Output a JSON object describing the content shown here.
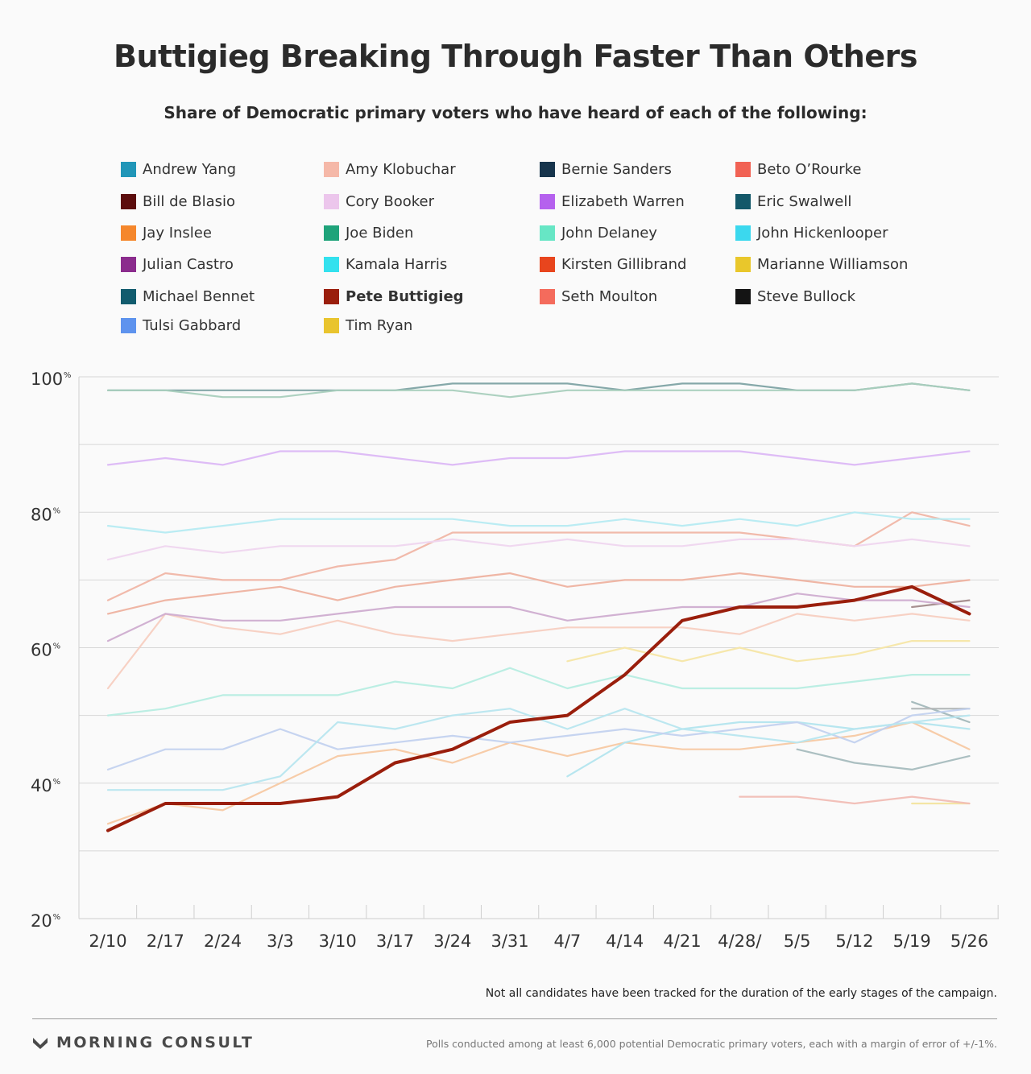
{
  "title": "Buttigieg Breaking Through Faster Than Others",
  "subtitle": "Share of Democratic primary voters who have heard of each of the following:",
  "footnote": "Not all candidates have been tracked for the duration of the early stages of the campaign.",
  "brand": "MORNING CONSULT",
  "source": "Polls conducted among at least 6,000 potential Democratic primary voters, each with a margin of error of +/-1%.",
  "chart_data": {
    "type": "line",
    "x": [
      "2/10",
      "2/17",
      "2/24",
      "3/3",
      "3/10",
      "3/17",
      "3/24",
      "3/31",
      "4/7",
      "4/14",
      "4/21",
      "4/28/",
      "5/5",
      "5/12",
      "5/19",
      "5/26"
    ],
    "ylim": [
      20,
      100
    ],
    "yticks": [
      20,
      40,
      60,
      80,
      100
    ],
    "ytick_labels": [
      "20",
      "40",
      "60",
      "80",
      "100"
    ],
    "ytick_suffix": "%",
    "grid": true,
    "legend_position": "top",
    "highlight": "Pete Buttigieg",
    "series": [
      {
        "name": "Andrew Yang",
        "color": "#2196b8",
        "line_color": "#a9d4df",
        "values": [
          null,
          null,
          null,
          null,
          null,
          null,
          null,
          null,
          null,
          null,
          null,
          null,
          null,
          null,
          51,
          51
        ]
      },
      {
        "name": "Amy Klobuchar",
        "color": "#f5b8a8",
        "line_color": "#f7cfc1",
        "values": [
          54,
          65,
          63,
          62,
          64,
          62,
          61,
          62,
          63,
          63,
          63,
          62,
          65,
          64,
          65,
          64
        ]
      },
      {
        "name": "Bernie Sanders",
        "color": "#16344c",
        "line_color": "#7ea3a4",
        "values": [
          98,
          98,
          98,
          98,
          98,
          98,
          99,
          99,
          99,
          98,
          99,
          99,
          98,
          98,
          99,
          98
        ]
      },
      {
        "name": "Beto O’Rourke",
        "color": "#f16254",
        "line_color": "#f0b6a6",
        "values": [
          67,
          71,
          70,
          70,
          72,
          73,
          77,
          77,
          77,
          77,
          77,
          77,
          76,
          75,
          80,
          78
        ]
      },
      {
        "name": "Bill de Blasio",
        "color": "#5c0d0d",
        "line_color": "#a38b8b",
        "values": [
          null,
          null,
          null,
          null,
          null,
          null,
          null,
          null,
          null,
          null,
          null,
          null,
          null,
          null,
          66,
          67
        ]
      },
      {
        "name": "Cory Booker",
        "color": "#ecc6ec",
        "line_color": "#efd6ef",
        "values": [
          73,
          75,
          74,
          75,
          75,
          75,
          76,
          75,
          76,
          75,
          75,
          76,
          76,
          75,
          76,
          75
        ]
      },
      {
        "name": "Elizabeth Warren",
        "color": "#b561ee",
        "line_color": "#dcb8f5",
        "values": [
          87,
          88,
          87,
          89,
          89,
          88,
          87,
          88,
          88,
          89,
          89,
          89,
          88,
          87,
          88,
          89
        ]
      },
      {
        "name": "Eric Swalwell",
        "color": "#135869",
        "line_color": "#a3b8ba",
        "values": [
          null,
          null,
          null,
          null,
          null,
          null,
          null,
          null,
          null,
          null,
          null,
          null,
          null,
          null,
          52,
          49
        ]
      },
      {
        "name": "Jay Inslee",
        "color": "#f5872c",
        "line_color": "#f7c9a3",
        "values": [
          34,
          37,
          36,
          40,
          44,
          45,
          43,
          46,
          44,
          46,
          45,
          45,
          46,
          47,
          49,
          45
        ]
      },
      {
        "name": "Joe Biden",
        "color": "#1fa37a",
        "line_color": "#a9cfbd",
        "values": [
          98,
          98,
          97,
          97,
          98,
          98,
          98,
          97,
          98,
          98,
          98,
          98,
          98,
          98,
          99,
          98
        ]
      },
      {
        "name": "John Delaney",
        "color": "#67e6c5",
        "line_color": "#b7ede1",
        "values": [
          50,
          51,
          53,
          53,
          53,
          55,
          54,
          57,
          54,
          56,
          54,
          54,
          54,
          55,
          56,
          56
        ]
      },
      {
        "name": "John Hickenlooper",
        "color": "#3bd8ee",
        "line_color": "#b3e5ee",
        "values": [
          null,
          null,
          null,
          null,
          null,
          null,
          null,
          null,
          41,
          46,
          48,
          49,
          49,
          48,
          49,
          48
        ]
      },
      {
        "name": "Julian Castro",
        "color": "#8b2c8d",
        "line_color": "#cfadd0",
        "values": [
          61,
          65,
          64,
          64,
          65,
          66,
          66,
          66,
          64,
          65,
          66,
          66,
          68,
          67,
          67,
          66
        ]
      },
      {
        "name": "Kamala Harris",
        "color": "#33e1ee",
        "line_color": "#b6ebf2",
        "values": [
          78,
          77,
          78,
          79,
          79,
          79,
          79,
          78,
          78,
          79,
          78,
          79,
          78,
          80,
          79,
          79
        ]
      },
      {
        "name": "Kirsten Gillibrand",
        "color": "#e8451d",
        "line_color": "#eeb2a0",
        "values": [
          65,
          67,
          68,
          69,
          67,
          69,
          70,
          71,
          69,
          70,
          70,
          71,
          70,
          69,
          69,
          70
        ]
      },
      {
        "name": "Marianne Williamson",
        "color": "#e9c72b",
        "line_color": "#f3e49f",
        "values": [
          null,
          null,
          null,
          null,
          null,
          null,
          null,
          null,
          null,
          null,
          null,
          null,
          null,
          null,
          37,
          37
        ]
      },
      {
        "name": "Michael Bennet",
        "color": "#125c6e",
        "line_color": "#a6bcbe",
        "values": [
          null,
          null,
          null,
          null,
          null,
          null,
          null,
          null,
          null,
          null,
          null,
          null,
          45,
          43,
          42,
          44
        ]
      },
      {
        "name": "Pete Buttigieg",
        "color": "#9a1e0c",
        "line_color": "#9a1e0c",
        "values": [
          33,
          37,
          37,
          37,
          38,
          43,
          45,
          49,
          50,
          56,
          64,
          66,
          66,
          67,
          69,
          65
        ]
      },
      {
        "name": "Seth Moulton",
        "color": "#f46b5c",
        "line_color": "#f1bdb5",
        "values": [
          null,
          null,
          null,
          null,
          null,
          null,
          null,
          null,
          null,
          null,
          null,
          38,
          38,
          37,
          38,
          37
        ]
      },
      {
        "name": "Steve Bullock",
        "color": "#141414",
        "line_color": "#b9b9b9",
        "values": [
          null,
          null,
          null,
          null,
          null,
          null,
          null,
          null,
          null,
          null,
          null,
          null,
          null,
          null,
          51,
          51
        ]
      },
      {
        "name": "Tulsi Gabbard",
        "color": "#5e93ee",
        "line_color": "#c3d2ef",
        "values": [
          42,
          45,
          45,
          48,
          45,
          46,
          47,
          46,
          47,
          48,
          47,
          48,
          49,
          46,
          50,
          51
        ]
      },
      {
        "name": "Tim Ryan",
        "color": "#e9c42e",
        "line_color": "#f6e6a6",
        "values": [
          null,
          null,
          null,
          null,
          null,
          null,
          null,
          null,
          58,
          60,
          58,
          60,
          58,
          59,
          61,
          61
        ]
      },
      {
        "name": "",
        "color": "#9fe4f0",
        "line_color": "#b8e6ef",
        "values": [
          39,
          39,
          39,
          41,
          49,
          48,
          50,
          51,
          48,
          51,
          48,
          47,
          46,
          48,
          49,
          50
        ]
      }
    ]
  }
}
